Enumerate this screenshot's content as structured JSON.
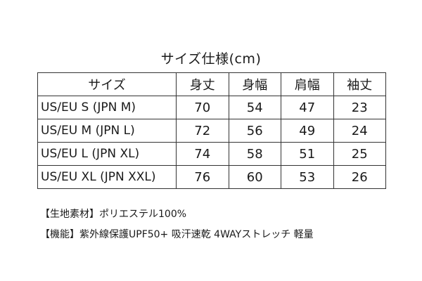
{
  "title": "サイズ仕様(cm)",
  "table": {
    "headers": [
      "サイズ",
      "身丈",
      "身幅",
      "肩幅",
      "袖丈"
    ],
    "rows": [
      [
        "US/EU S (JPN M)",
        "70",
        "54",
        "47",
        "23"
      ],
      [
        "US/EU M (JPN L)",
        "72",
        "56",
        "49",
        "24"
      ],
      [
        "US/EU L (JPN XL)",
        "74",
        "58",
        "51",
        "25"
      ],
      [
        "US/EU XL (JPN XXL)",
        "76",
        "60",
        "53",
        "26"
      ]
    ]
  },
  "notes": {
    "material": "【生地素材】ポリエステル100%",
    "function": "【機能】紫外線保護UPF50+ 吸汗速乾 4WAYストレッチ 軽量"
  }
}
